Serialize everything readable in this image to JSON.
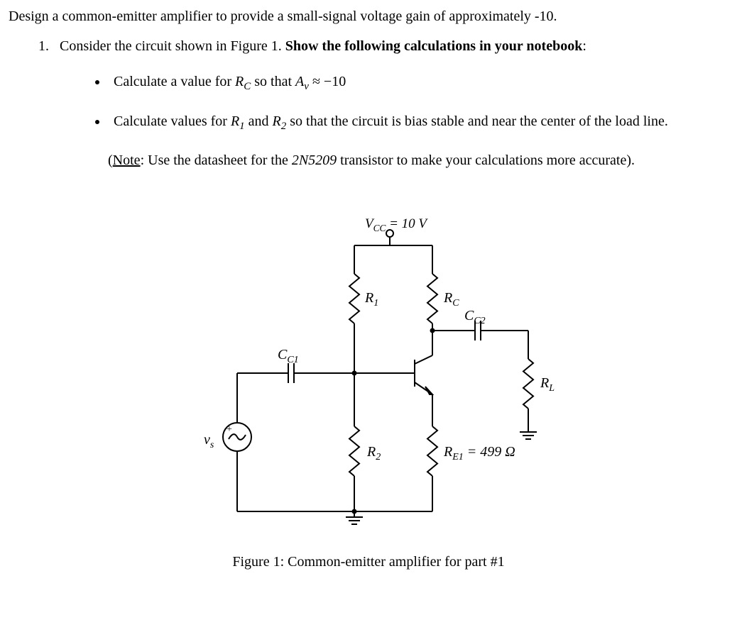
{
  "text": {
    "intro": "Design a common-emitter amplifier to provide a small-signal voltage gain of approximately -10.",
    "item1_prefix": "Consider the circuit shown in Figure 1. ",
    "item1_bold": "Show the following calculations in your notebook",
    "item1_suffix": ":",
    "bullet1_a": "Calculate a value for ",
    "bullet1_rc_R": "R",
    "bullet1_rc_C": "C",
    "bullet1_b": " so that ",
    "bullet1_av_A": "A",
    "bullet1_av_v": "v",
    "bullet1_c": " ≈ −10",
    "bullet2_a": "Calculate values for ",
    "bullet2_r1_R": "R",
    "bullet2_r1_1": "1",
    "bullet2_b": " and ",
    "bullet2_r2_R": "R",
    "bullet2_r2_2": "2",
    "bullet2_c": " so that the circuit is bias stable and near the center of the load line.",
    "note_open": "(",
    "note_label": "Note",
    "note_a": ": Use the datasheet for the ",
    "note_part": "2N5209",
    "note_b": " transistor to make your calculations more accurate).",
    "caption": "Figure 1: Common-emitter amplifier for part #1"
  },
  "circuit": {
    "stroke_color": "#000000",
    "stroke_width": 2,
    "labels": {
      "vcc": "V",
      "vcc_sub": "CC",
      "vcc_val": " = 10 V",
      "r1": "R",
      "r1_sub": "1",
      "rc": "R",
      "rc_sub": "C",
      "cc1": "C",
      "cc1_sub": "C1",
      "cc2": "C",
      "cc2_sub": "C2",
      "r2": "R",
      "r2_sub": "2",
      "re1": "R",
      "re1_sub": "E1",
      "re1_val": " = 499 Ω",
      "rl": "R",
      "rl_sub": "L",
      "vs": "v",
      "vs_sub": "s"
    }
  }
}
